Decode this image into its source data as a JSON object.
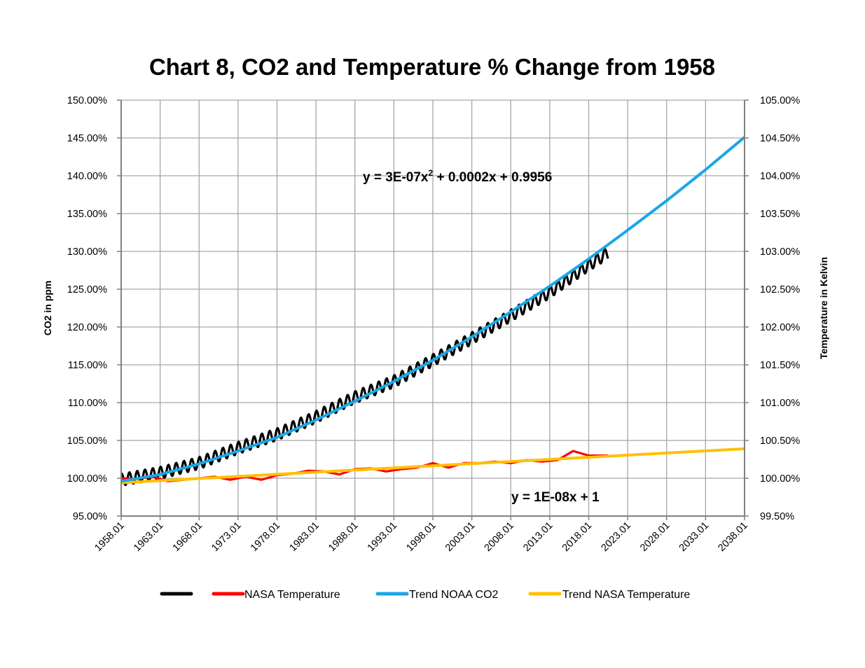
{
  "chart_data": {
    "type": "line",
    "title": "Chart 8, CO2 and Temperature % Change from 1958",
    "ylabel_left": "CO2 in ppm",
    "ylabel_right": "Temperature in Kelvin",
    "xlabel": "",
    "x_categories": [
      "1958.01",
      "1963.01",
      "1968.01",
      "1973.01",
      "1978.01",
      "1983.01",
      "1988.01",
      "1993.01",
      "1998.01",
      "2003.01",
      "2008.01",
      "2013.01",
      "2018.01",
      "2023.01",
      "2028.01",
      "2033.01",
      "2038.01"
    ],
    "xlim": [
      1958,
      2038
    ],
    "ylim_left": [
      0.95,
      1.5
    ],
    "ylim_right": [
      0.995,
      1.05
    ],
    "y_ticks_left": [
      "95.00%",
      "100.00%",
      "105.00%",
      "110.00%",
      "115.00%",
      "120.00%",
      "125.00%",
      "130.00%",
      "135.00%",
      "140.00%",
      "145.00%",
      "150.00%"
    ],
    "y_ticks_right": [
      "99.50%",
      "100.00%",
      "100.50%",
      "101.00%",
      "101.50%",
      "102.00%",
      "102.50%",
      "103.00%",
      "103.50%",
      "104.00%",
      "104.50%",
      "105.00%"
    ],
    "grid": true,
    "legend_position": "bottom",
    "annotations": [
      {
        "text_pre": "y = 3E-07x",
        "sup": "2",
        "text_post": " + 0.0002x + 0.9956",
        "attach": "Trend NOAA CO2"
      },
      {
        "text": "y = 1E-08x + 1",
        "attach": "Trend NASA Temperature"
      }
    ],
    "series": [
      {
        "name": "",
        "axis": "left",
        "color": "#000000",
        "seasonal_amplitude": 0.008,
        "x": [
          1958,
          1963,
          1968,
          1973,
          1978,
          1983,
          1988,
          1993,
          1998,
          2003,
          2008,
          2013,
          2018,
          2020.5
        ],
        "values": [
          0.998,
          1.007,
          1.02,
          1.04,
          1.058,
          1.081,
          1.107,
          1.128,
          1.156,
          1.185,
          1.215,
          1.246,
          1.282,
          1.298
        ]
      },
      {
        "name": "NASA Temperature",
        "axis": "right",
        "color": "#ff0000",
        "x": [
          1958,
          1960,
          1962,
          1964,
          1966,
          1968,
          1970,
          1972,
          1974,
          1976,
          1978,
          1980,
          1982,
          1984,
          1986,
          1988,
          1990,
          1992,
          1994,
          1996,
          1998,
          2000,
          2002,
          2004,
          2006,
          2008,
          2010,
          2012,
          2014,
          2016,
          2018,
          2020.5
        ],
        "values": [
          1.0,
          0.9999,
          1.0002,
          0.9996,
          0.9998,
          1.0,
          1.0002,
          0.9998,
          1.0002,
          0.9998,
          1.0004,
          1.0006,
          1.001,
          1.0009,
          1.0005,
          1.0012,
          1.0013,
          1.0009,
          1.0012,
          1.0014,
          1.002,
          1.0014,
          1.002,
          1.002,
          1.0022,
          1.002,
          1.0024,
          1.0022,
          1.0024,
          1.0036,
          1.003,
          1.003
        ]
      },
      {
        "name": "Trend NOAA CO2",
        "axis": "left",
        "color": "#1aa7e6",
        "x": [
          1958,
          1963,
          1968,
          1973,
          1978,
          1983,
          1988,
          1993,
          1998,
          2003,
          2008,
          2013,
          2018,
          2023,
          2028,
          2033,
          2038
        ],
        "values": [
          0.996,
          1.005,
          1.019,
          1.036,
          1.054,
          1.077,
          1.102,
          1.128,
          1.156,
          1.187,
          1.22,
          1.254,
          1.29,
          1.328,
          1.367,
          1.408,
          1.451
        ]
      },
      {
        "name": "Trend NASA Temperature",
        "axis": "right",
        "color": "#ffc000",
        "x": [
          1958,
          2038
        ],
        "values": [
          0.9994,
          1.0039
        ]
      }
    ]
  }
}
